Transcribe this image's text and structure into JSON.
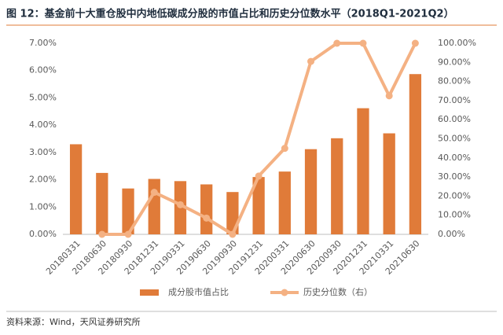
{
  "chart_data": {
    "type": "bar_line",
    "title": "图 12：基金前十大重仓股中内地低碳成分股的市值占比和历史分位数水平（2018Q1-2021Q2）",
    "source": "资料来源：Wind，天风证券研究所",
    "categories": [
      "20180331",
      "20180630",
      "20180930",
      "20181231",
      "20190331",
      "20190630",
      "20190930",
      "20191231",
      "20200331",
      "20200630",
      "20200930",
      "20201231",
      "20210331",
      "20210630"
    ],
    "series": [
      {
        "name": "成分股市值占比",
        "type": "bar",
        "color": "#e07b39",
        "values": [
          3.3,
          2.25,
          1.68,
          2.03,
          1.95,
          1.83,
          1.55,
          2.1,
          2.3,
          3.12,
          3.52,
          4.62,
          3.7,
          5.87
        ]
      },
      {
        "name": "历史分位数（右）",
        "type": "line",
        "axis": "y2",
        "color": "#f4b183",
        "values": [
          null,
          0,
          0,
          22,
          15.5,
          8.5,
          0,
          30.5,
          45,
          90.5,
          100,
          100,
          72.5,
          100
        ]
      }
    ],
    "ylim": [
      0,
      7
    ],
    "yticks": [
      {
        "value": 0,
        "label": "0.00%"
      },
      {
        "value": 1,
        "label": "1.00%"
      },
      {
        "value": 2,
        "label": "2.00%"
      },
      {
        "value": 3,
        "label": "3.00%"
      },
      {
        "value": 4,
        "label": "4.00%"
      },
      {
        "value": 5,
        "label": "5.00%"
      },
      {
        "value": 6,
        "label": "6.00%"
      },
      {
        "value": 7,
        "label": "7.00%"
      }
    ],
    "y2lim": [
      0,
      100
    ],
    "y2ticks": [
      {
        "value": 0,
        "label": "0.00%"
      },
      {
        "value": 10,
        "label": "10.00%"
      },
      {
        "value": 20,
        "label": "20.00%"
      },
      {
        "value": 30,
        "label": "30.00%"
      },
      {
        "value": 40,
        "label": "40.00%"
      },
      {
        "value": 50,
        "label": "50.00%"
      },
      {
        "value": 60,
        "label": "60.00%"
      },
      {
        "value": 70,
        "label": "70.00%"
      },
      {
        "value": 80,
        "label": "80.00%"
      },
      {
        "value": 90,
        "label": "90.00%"
      },
      {
        "value": 100,
        "label": "100.00%"
      }
    ],
    "grid": false
  }
}
